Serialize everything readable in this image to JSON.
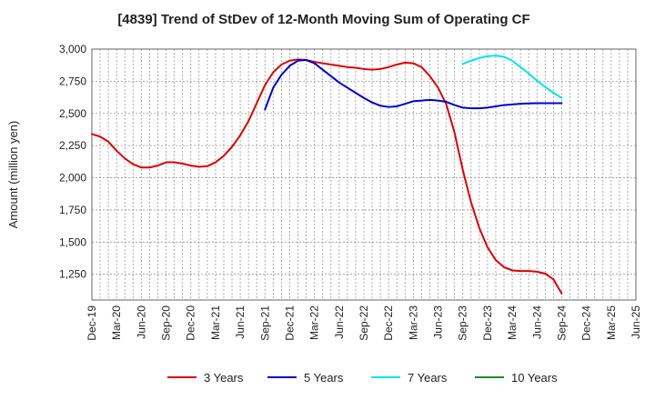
{
  "chart_data": {
    "type": "line",
    "title": "[4839]  Trend of StDev of 12-Month Moving Sum of Operating CF",
    "xlabel": "",
    "ylabel": "Amount (million yen)",
    "ylim": [
      1050,
      3000
    ],
    "yticks": [
      1250,
      1500,
      1750,
      2000,
      2250,
      2500,
      2750,
      3000
    ],
    "ytick_labels": [
      "1,250",
      "1,500",
      "1,750",
      "2,000",
      "2,250",
      "2,500",
      "2,750",
      "3,000"
    ],
    "xlim": [
      0,
      66
    ],
    "xticks": [
      0,
      3,
      6,
      9,
      12,
      15,
      18,
      21,
      24,
      27,
      30,
      33,
      36,
      39,
      42,
      45,
      48,
      51,
      54,
      57,
      60,
      63,
      66
    ],
    "xtick_labels": [
      "Dec-19",
      "Mar-20",
      "Jun-20",
      "Sep-20",
      "Dec-20",
      "Mar-21",
      "Jun-21",
      "Sep-21",
      "Dec-21",
      "Mar-22",
      "Jun-22",
      "Sep-22",
      "Dec-22",
      "Mar-23",
      "Jun-23",
      "Sep-23",
      "Dec-23",
      "Mar-24",
      "Jun-24",
      "Sep-24",
      "Dec-24",
      "Mar-25",
      "Jun-25"
    ],
    "grid": true,
    "legend_position": "bottom",
    "series": [
      {
        "name": "3 Years",
        "color": "#dd0000",
        "x": [
          0,
          1,
          2,
          3,
          4,
          5,
          6,
          7,
          8,
          9,
          10,
          11,
          12,
          13,
          14,
          15,
          16,
          17,
          18,
          19,
          20,
          21,
          22,
          23,
          24,
          25,
          26,
          27,
          28,
          29,
          30,
          31,
          32,
          33,
          34,
          35,
          36,
          37,
          38,
          39,
          40,
          41,
          42,
          43,
          44,
          45,
          46,
          47,
          48,
          49,
          50,
          51,
          52,
          53,
          54,
          55,
          56,
          57
        ],
        "values": [
          2340,
          2320,
          2280,
          2210,
          2150,
          2105,
          2080,
          2080,
          2095,
          2120,
          2120,
          2110,
          2095,
          2085,
          2090,
          2120,
          2170,
          2240,
          2330,
          2440,
          2580,
          2720,
          2820,
          2880,
          2910,
          2920,
          2915,
          2900,
          2890,
          2880,
          2870,
          2860,
          2855,
          2845,
          2840,
          2845,
          2860,
          2880,
          2895,
          2890,
          2860,
          2790,
          2700,
          2570,
          2350,
          2060,
          1810,
          1610,
          1460,
          1360,
          1305,
          1280,
          1275,
          1275,
          1270,
          1255,
          1210,
          1100
        ]
      },
      {
        "name": "5 Years",
        "color": "#0000cc",
        "x": [
          21,
          22,
          23,
          24,
          25,
          26,
          27,
          28,
          29,
          30,
          31,
          32,
          33,
          34,
          35,
          36,
          37,
          38,
          39,
          40,
          41,
          42,
          43,
          44,
          45,
          46,
          47,
          48,
          49,
          50,
          51,
          52,
          53,
          54,
          55,
          56,
          57
        ],
        "values": [
          2530,
          2700,
          2800,
          2870,
          2910,
          2915,
          2890,
          2840,
          2790,
          2740,
          2700,
          2660,
          2620,
          2585,
          2560,
          2550,
          2555,
          2575,
          2595,
          2600,
          2605,
          2600,
          2590,
          2565,
          2545,
          2540,
          2540,
          2545,
          2555,
          2565,
          2570,
          2575,
          2578,
          2580,
          2580,
          2580,
          2580
        ]
      },
      {
        "name": "7 Years",
        "color": "#00e5ee",
        "x": [
          45,
          46,
          47,
          48,
          49,
          50,
          51,
          52,
          53,
          54,
          55,
          56,
          57
        ],
        "values": [
          2885,
          2910,
          2930,
          2945,
          2950,
          2940,
          2910,
          2860,
          2810,
          2755,
          2705,
          2660,
          2620
        ]
      },
      {
        "name": "10 Years",
        "color": "#228b22",
        "x": [],
        "values": []
      }
    ]
  }
}
